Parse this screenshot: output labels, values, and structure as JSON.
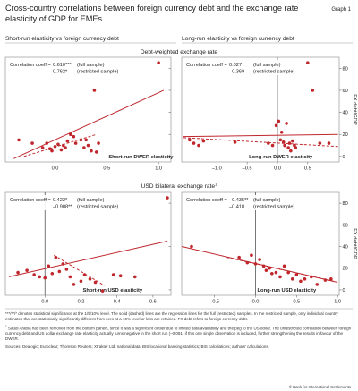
{
  "header": {
    "title": "Cross-country correlations between foreign currency debt and the exchange rate elasticity of GDP for EMEs",
    "graph_label": "Graph 1"
  },
  "panel_headers": {
    "left": "Short-run elasticity vs foreign currency debt",
    "right": "Long-run elasticity vs foreign currency debt"
  },
  "section_titles": {
    "top": "Debt-weighted exchange rate",
    "bottom": "USD bilateral exchange rate",
    "bottom_superscript": "1"
  },
  "y_axis_title": "FX debt/GDP",
  "colors": {
    "series": "#c0272d",
    "axis": "#555555",
    "grid": "#d9d9d9"
  },
  "chart_data": [
    {
      "id": "tl",
      "type": "scatter",
      "xlabel": "Short-run DWER elasticity",
      "ylabel": "",
      "xlim": [
        -0.48,
        1.12
      ],
      "ylim": [
        -5,
        90
      ],
      "x_ticks": [
        0.0,
        0.5,
        1.0
      ],
      "x_tick_labels": [
        "0.0",
        "0.5",
        "1.0"
      ],
      "y_ticks": [
        0,
        20,
        40,
        60,
        80
      ],
      "y_tick_labels": [
        "",
        "",
        "",
        "",
        ""
      ],
      "corr_label": "Correlation coeff =",
      "corr_full": "0.610***",
      "corr_restricted": "0.762*",
      "note_full": "(full sample)",
      "note_restricted": "(restricted sample)",
      "points": [
        [
          -0.35,
          15
        ],
        [
          -0.22,
          12
        ],
        [
          -0.12,
          8
        ],
        [
          -0.08,
          12
        ],
        [
          -0.05,
          7
        ],
        [
          -0.03,
          5
        ],
        [
          0.0,
          9
        ],
        [
          0.03,
          11
        ],
        [
          0.06,
          6
        ],
        [
          0.08,
          10
        ],
        [
          0.1,
          8
        ],
        [
          0.12,
          14
        ],
        [
          0.15,
          20
        ],
        [
          0.18,
          18
        ],
        [
          0.2,
          12
        ],
        [
          0.25,
          15
        ],
        [
          0.28,
          8
        ],
        [
          0.3,
          15
        ],
        [
          0.32,
          10
        ],
        [
          0.35,
          5
        ],
        [
          0.38,
          60
        ],
        [
          0.4,
          4
        ],
        [
          0.42,
          12
        ],
        [
          1.0,
          85
        ]
      ],
      "fit_full": [
        [
          -0.4,
          -2
        ],
        [
          1.05,
          60
        ]
      ],
      "fit_restricted": [
        [
          -0.3,
          0
        ],
        [
          0.4,
          20
        ]
      ]
    },
    {
      "id": "tr",
      "type": "scatter",
      "xlabel": "Long-run DWER elasticity",
      "ylabel": "FX debt/GDP",
      "xlim": [
        -1.58,
        1.02
      ],
      "ylim": [
        -5,
        90
      ],
      "x_ticks": [
        -1.0,
        -0.5,
        0.0,
        0.5
      ],
      "x_tick_labels": [
        "–1.0",
        "–0.5",
        "0.0",
        "0.5"
      ],
      "y_ticks": [
        0,
        20,
        40,
        60,
        80
      ],
      "y_tick_labels": [
        "0",
        "20",
        "40",
        "60",
        "80"
      ],
      "corr_label": "Correlation coeff =",
      "corr_full": "0.027",
      "corr_restricted": "–0.369",
      "note_full": "(full sample)",
      "note_restricted": "(restricted sample)",
      "points": [
        [
          -1.45,
          15
        ],
        [
          -1.38,
          12
        ],
        [
          -1.3,
          10
        ],
        [
          -1.22,
          14
        ],
        [
          -0.7,
          13
        ],
        [
          -0.15,
          12
        ],
        [
          -0.08,
          10
        ],
        [
          -0.02,
          28
        ],
        [
          0.02,
          32
        ],
        [
          0.05,
          15
        ],
        [
          0.07,
          22
        ],
        [
          0.1,
          13
        ],
        [
          0.12,
          10
        ],
        [
          0.15,
          30
        ],
        [
          0.18,
          8
        ],
        [
          0.2,
          12
        ],
        [
          0.22,
          5
        ],
        [
          0.25,
          14
        ],
        [
          0.28,
          10
        ],
        [
          0.3,
          8
        ],
        [
          0.5,
          85
        ],
        [
          0.58,
          60
        ],
        [
          0.7,
          12
        ],
        [
          0.85,
          12
        ]
      ],
      "fit_full": [
        [
          -1.55,
          18
        ],
        [
          1.0,
          20
        ]
      ],
      "fit_restricted": [
        [
          -1.55,
          17
        ],
        [
          1.0,
          9
        ]
      ]
    },
    {
      "id": "bl",
      "type": "scatter",
      "xlabel": "Short-run USD elasticity",
      "ylabel": "",
      "xlim": [
        -0.22,
        0.7
      ],
      "ylim": [
        -5,
        90
      ],
      "x_ticks": [
        0.0,
        0.2,
        0.4,
        0.6
      ],
      "x_tick_labels": [
        "0.0",
        "0.2",
        "0.4",
        "0.6"
      ],
      "y_ticks": [
        0,
        20,
        40,
        60,
        80
      ],
      "y_tick_labels": [
        "",
        "",
        "",
        "",
        ""
      ],
      "corr_label": "Correlation coeff =",
      "corr_full": "0.422*",
      "corr_restricted": "–0.908**",
      "note_full": "(full sample)",
      "note_restricted": "(restricted sample)",
      "points": [
        [
          -0.15,
          16
        ],
        [
          -0.1,
          18
        ],
        [
          -0.06,
          14
        ],
        [
          -0.03,
          12
        ],
        [
          0.0,
          11
        ],
        [
          0.02,
          22
        ],
        [
          0.04,
          15
        ],
        [
          0.06,
          30
        ],
        [
          0.08,
          17
        ],
        [
          0.1,
          24
        ],
        [
          0.12,
          19
        ],
        [
          0.14,
          12
        ],
        [
          0.16,
          5
        ],
        [
          0.2,
          8
        ],
        [
          0.22,
          14
        ],
        [
          0.25,
          10
        ],
        [
          0.28,
          7
        ],
        [
          0.32,
          -1
        ],
        [
          0.38,
          14
        ],
        [
          0.42,
          13
        ],
        [
          0.5,
          12
        ],
        [
          0.68,
          85
        ]
      ],
      "fit_full": [
        [
          -0.2,
          12
        ],
        [
          0.68,
          45
        ]
      ],
      "fit_restricted": [
        [
          0.05,
          32
        ],
        [
          0.33,
          4
        ]
      ]
    },
    {
      "id": "br",
      "type": "scatter",
      "xlabel": "Long-run USD elasticity",
      "ylabel": "FX debt/GDP",
      "xlim": [
        -0.9,
        1.02
      ],
      "ylim": [
        -5,
        90
      ],
      "x_ticks": [
        -0.5,
        0.0,
        0.5,
        1.0
      ],
      "x_tick_labels": [
        "–0.5",
        "0.0",
        "0.5",
        "1.0"
      ],
      "y_ticks": [
        0,
        20,
        40,
        60,
        80
      ],
      "y_tick_labels": [
        "0",
        "20",
        "40",
        "60",
        "80"
      ],
      "corr_label": "Correlation coeff =",
      "corr_full": "–0.435**",
      "corr_restricted": "–0.418",
      "note_full": "(full sample)",
      "note_restricted": "(restricted sample)",
      "points": [
        [
          -0.78,
          40
        ],
        [
          -0.2,
          30
        ],
        [
          -0.1,
          25
        ],
        [
          -0.05,
          32
        ],
        [
          0.0,
          24
        ],
        [
          0.05,
          28
        ],
        [
          0.1,
          22
        ],
        [
          0.13,
          18
        ],
        [
          0.17,
          20
        ],
        [
          0.2,
          15
        ],
        [
          0.25,
          16
        ],
        [
          0.3,
          12
        ],
        [
          0.35,
          22
        ],
        [
          0.4,
          16
        ],
        [
          0.45,
          10
        ],
        [
          0.5,
          14
        ],
        [
          0.55,
          8
        ],
        [
          0.6,
          10
        ],
        [
          0.68,
          12
        ],
        [
          0.75,
          5
        ],
        [
          0.85,
          9
        ],
        [
          0.92,
          10
        ]
      ],
      "fit_full": [
        [
          -0.9,
          40
        ],
        [
          1.0,
          7
        ]
      ],
      "fit_restricted": [
        [
          -0.35,
          30
        ],
        [
          0.95,
          8
        ]
      ]
    }
  ],
  "notes": {
    "significance": "***/**/* denotes statistical significance at the 1/5/10% level. The solid (dashed) lines are the regression lines for the full (restricted) samples. In the restricted sample, only individual country estimates that are statistically significantly different from zero at a 10% level or less are retained. FX debt refers to foreign currency debt.",
    "footnote_marker": "1",
    "footnote": "Saudi Arabia has been removed from the bottom panels, since it was a significant outlier due to limited data availability and the peg to the US dollar. The unrestricted correlation between foreign currency debt and US dollar exchange rate elasticity actually turns negative in the short run (–0.091) if this one single observation is included, further strengthening the results in favour of the DWER.",
    "sources": "Sources: Dealogic; Euroclear; Thomson Reuters; Xtrakter Ltd; national data; BIS locational banking statistics; BIS calculations; authors' calculations."
  },
  "copyright": "© Bank for International Settlements"
}
